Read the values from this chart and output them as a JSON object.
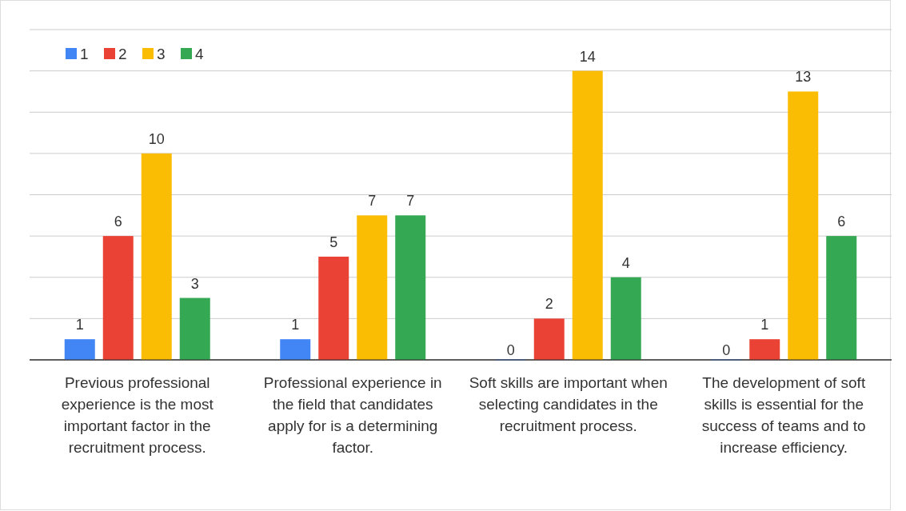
{
  "chart_data": {
    "type": "bar",
    "categories": [
      "Previous professional experience is the most important factor in the recruitment process.",
      "Professional experience in the field that candidates apply for is a determining factor.",
      "Soft skills are important when selecting candidates in the recruitment process.",
      "The development of soft skills is essential for the success of teams and to increase efficiency."
    ],
    "series": [
      {
        "name": "1",
        "color": "#4285f4",
        "values": [
          1,
          1,
          0,
          0
        ]
      },
      {
        "name": "2",
        "color": "#ea4335",
        "values": [
          6,
          5,
          2,
          1
        ]
      },
      {
        "name": "3",
        "color": "#fbbc04",
        "values": [
          10,
          7,
          14,
          13
        ]
      },
      {
        "name": "4",
        "color": "#34a853",
        "values": [
          3,
          7,
          4,
          6
        ]
      }
    ],
    "ylim": [
      0,
      16
    ],
    "yticks": [
      {
        "value": 0,
        "label": null
      },
      {
        "value": 2,
        "label": null
      },
      {
        "value": 4,
        "label": null
      },
      {
        "value": 6,
        "label": null
      },
      {
        "value": 8,
        "label": null
      },
      {
        "value": 10,
        "label": null
      },
      {
        "value": 12,
        "label": null
      },
      {
        "value": 14,
        "label": null
      },
      {
        "value": 16,
        "label": null
      }
    ],
    "tick_labels": "x",
    "grid": "y",
    "legend": "top left",
    "data_labels": true
  }
}
